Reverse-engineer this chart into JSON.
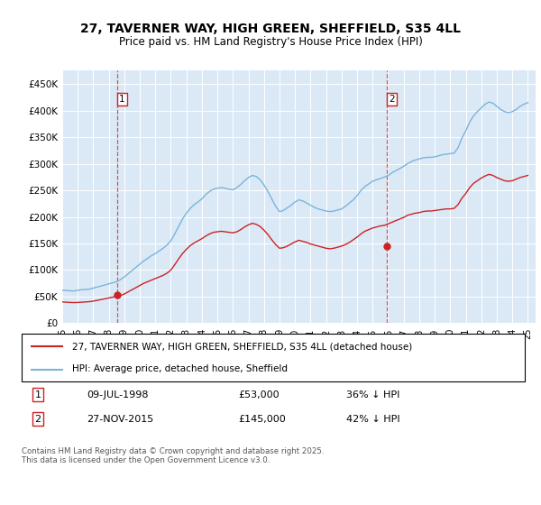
{
  "title": "27, TAVERNER WAY, HIGH GREEN, SHEFFIELD, S35 4LL",
  "subtitle": "Price paid vs. HM Land Registry's House Price Index (HPI)",
  "legend_line1": "27, TAVERNER WAY, HIGH GREEN, SHEFFIELD, S35 4LL (detached house)",
  "legend_line2": "HPI: Average price, detached house, Sheffield",
  "footer": "Contains HM Land Registry data © Crown copyright and database right 2025.\nThis data is licensed under the Open Government Licence v3.0.",
  "purchase1_date": 1998.52,
  "purchase1_label": "1",
  "purchase1_price": 53000,
  "purchase1_text": "09-JUL-1998",
  "purchase1_price_text": "£53,000",
  "purchase1_pct": "36% ↓ HPI",
  "purchase2_date": 2015.9,
  "purchase2_label": "2",
  "purchase2_price": 145000,
  "purchase2_text": "27-NOV-2015",
  "purchase2_price_text": "£145,000",
  "purchase2_pct": "42% ↓ HPI",
  "hpi_color": "#7ab4d8",
  "price_color": "#cc2222",
  "background_color": "#dbe9f7",
  "ylim": [
    0,
    475000
  ],
  "yticks": [
    0,
    50000,
    100000,
    150000,
    200000,
    250000,
    300000,
    350000,
    400000,
    450000
  ],
  "ytick_labels": [
    "£0",
    "£50K",
    "£100K",
    "£150K",
    "£200K",
    "£250K",
    "£300K",
    "£350K",
    "£400K",
    "£450K"
  ],
  "hpi_data": [
    [
      1995.0,
      62000
    ],
    [
      1995.25,
      61500
    ],
    [
      1995.5,
      61000
    ],
    [
      1995.75,
      60500
    ],
    [
      1996.0,
      62000
    ],
    [
      1996.25,
      63000
    ],
    [
      1996.5,
      63500
    ],
    [
      1996.75,
      64000
    ],
    [
      1997.0,
      66000
    ],
    [
      1997.25,
      68000
    ],
    [
      1997.5,
      70000
    ],
    [
      1997.75,
      72000
    ],
    [
      1998.0,
      74000
    ],
    [
      1998.25,
      76000
    ],
    [
      1998.5,
      78000
    ],
    [
      1998.75,
      82000
    ],
    [
      1999.0,
      87000
    ],
    [
      1999.25,
      93000
    ],
    [
      1999.5,
      99000
    ],
    [
      1999.75,
      105000
    ],
    [
      2000.0,
      111000
    ],
    [
      2000.25,
      117000
    ],
    [
      2000.5,
      122000
    ],
    [
      2000.75,
      127000
    ],
    [
      2001.0,
      131000
    ],
    [
      2001.25,
      136000
    ],
    [
      2001.5,
      141000
    ],
    [
      2001.75,
      147000
    ],
    [
      2002.0,
      155000
    ],
    [
      2002.25,
      168000
    ],
    [
      2002.5,
      182000
    ],
    [
      2002.75,
      196000
    ],
    [
      2003.0,
      207000
    ],
    [
      2003.25,
      216000
    ],
    [
      2003.5,
      223000
    ],
    [
      2003.75,
      228000
    ],
    [
      2004.0,
      234000
    ],
    [
      2004.25,
      242000
    ],
    [
      2004.5,
      248000
    ],
    [
      2004.75,
      252000
    ],
    [
      2005.0,
      254000
    ],
    [
      2005.25,
      255000
    ],
    [
      2005.5,
      254000
    ],
    [
      2005.75,
      252000
    ],
    [
      2006.0,
      251000
    ],
    [
      2006.25,
      255000
    ],
    [
      2006.5,
      261000
    ],
    [
      2006.75,
      268000
    ],
    [
      2007.0,
      274000
    ],
    [
      2007.25,
      278000
    ],
    [
      2007.5,
      276000
    ],
    [
      2007.75,
      270000
    ],
    [
      2008.0,
      260000
    ],
    [
      2008.25,
      248000
    ],
    [
      2008.5,
      234000
    ],
    [
      2008.75,
      220000
    ],
    [
      2009.0,
      210000
    ],
    [
      2009.25,
      212000
    ],
    [
      2009.5,
      217000
    ],
    [
      2009.75,
      222000
    ],
    [
      2010.0,
      228000
    ],
    [
      2010.25,
      232000
    ],
    [
      2010.5,
      230000
    ],
    [
      2010.75,
      226000
    ],
    [
      2011.0,
      222000
    ],
    [
      2011.25,
      218000
    ],
    [
      2011.5,
      215000
    ],
    [
      2011.75,
      213000
    ],
    [
      2012.0,
      211000
    ],
    [
      2012.25,
      210000
    ],
    [
      2012.5,
      211000
    ],
    [
      2012.75,
      213000
    ],
    [
      2013.0,
      215000
    ],
    [
      2013.25,
      220000
    ],
    [
      2013.5,
      226000
    ],
    [
      2013.75,
      232000
    ],
    [
      2014.0,
      240000
    ],
    [
      2014.25,
      250000
    ],
    [
      2014.5,
      257000
    ],
    [
      2014.75,
      262000
    ],
    [
      2015.0,
      267000
    ],
    [
      2015.25,
      270000
    ],
    [
      2015.5,
      272000
    ],
    [
      2015.75,
      275000
    ],
    [
      2016.0,
      278000
    ],
    [
      2016.25,
      283000
    ],
    [
      2016.5,
      287000
    ],
    [
      2016.75,
      291000
    ],
    [
      2017.0,
      295000
    ],
    [
      2017.25,
      300000
    ],
    [
      2017.5,
      304000
    ],
    [
      2017.75,
      307000
    ],
    [
      2018.0,
      309000
    ],
    [
      2018.25,
      311000
    ],
    [
      2018.5,
      312000
    ],
    [
      2018.75,
      312000
    ],
    [
      2019.0,
      313000
    ],
    [
      2019.25,
      315000
    ],
    [
      2019.5,
      317000
    ],
    [
      2019.75,
      318000
    ],
    [
      2020.0,
      319000
    ],
    [
      2020.25,
      320000
    ],
    [
      2020.5,
      330000
    ],
    [
      2020.75,
      348000
    ],
    [
      2021.0,
      362000
    ],
    [
      2021.25,
      378000
    ],
    [
      2021.5,
      390000
    ],
    [
      2021.75,
      398000
    ],
    [
      2022.0,
      405000
    ],
    [
      2022.25,
      412000
    ],
    [
      2022.5,
      416000
    ],
    [
      2022.75,
      414000
    ],
    [
      2023.0,
      408000
    ],
    [
      2023.25,
      402000
    ],
    [
      2023.5,
      398000
    ],
    [
      2023.75,
      396000
    ],
    [
      2024.0,
      398000
    ],
    [
      2024.25,
      402000
    ],
    [
      2024.5,
      408000
    ],
    [
      2024.75,
      412000
    ],
    [
      2025.0,
      415000
    ]
  ],
  "price_data": [
    [
      1995.0,
      40000
    ],
    [
      1995.25,
      39500
    ],
    [
      1995.5,
      39000
    ],
    [
      1995.75,
      38800
    ],
    [
      1996.0,
      39000
    ],
    [
      1996.25,
      39500
    ],
    [
      1996.5,
      40000
    ],
    [
      1996.75,
      40500
    ],
    [
      1997.0,
      41500
    ],
    [
      1997.25,
      43000
    ],
    [
      1997.5,
      44500
    ],
    [
      1997.75,
      46000
    ],
    [
      1998.0,
      47500
    ],
    [
      1998.25,
      49000
    ],
    [
      1998.5,
      50500
    ],
    [
      1998.75,
      52000
    ],
    [
      1999.0,
      55000
    ],
    [
      1999.25,
      59000
    ],
    [
      1999.5,
      63000
    ],
    [
      1999.75,
      67000
    ],
    [
      2000.0,
      71000
    ],
    [
      2000.25,
      75000
    ],
    [
      2000.5,
      78000
    ],
    [
      2000.75,
      81000
    ],
    [
      2001.0,
      84000
    ],
    [
      2001.25,
      87000
    ],
    [
      2001.5,
      90000
    ],
    [
      2001.75,
      94000
    ],
    [
      2002.0,
      100000
    ],
    [
      2002.25,
      110000
    ],
    [
      2002.5,
      121000
    ],
    [
      2002.75,
      131000
    ],
    [
      2003.0,
      139000
    ],
    [
      2003.25,
      146000
    ],
    [
      2003.5,
      151000
    ],
    [
      2003.75,
      155000
    ],
    [
      2004.0,
      159000
    ],
    [
      2004.25,
      164000
    ],
    [
      2004.5,
      168000
    ],
    [
      2004.75,
      171000
    ],
    [
      2005.0,
      172000
    ],
    [
      2005.25,
      173000
    ],
    [
      2005.5,
      172000
    ],
    [
      2005.75,
      171000
    ],
    [
      2006.0,
      170000
    ],
    [
      2006.25,
      172000
    ],
    [
      2006.5,
      176000
    ],
    [
      2006.75,
      181000
    ],
    [
      2007.0,
      185000
    ],
    [
      2007.25,
      188000
    ],
    [
      2007.5,
      186000
    ],
    [
      2007.75,
      182000
    ],
    [
      2008.0,
      175000
    ],
    [
      2008.25,
      167000
    ],
    [
      2008.5,
      157000
    ],
    [
      2008.75,
      148000
    ],
    [
      2009.0,
      141000
    ],
    [
      2009.25,
      142000
    ],
    [
      2009.5,
      145000
    ],
    [
      2009.75,
      149000
    ],
    [
      2010.0,
      153000
    ],
    [
      2010.25,
      156000
    ],
    [
      2010.5,
      154000
    ],
    [
      2010.75,
      152000
    ],
    [
      2011.0,
      149000
    ],
    [
      2011.25,
      147000
    ],
    [
      2011.5,
      145000
    ],
    [
      2011.75,
      143000
    ],
    [
      2012.0,
      141000
    ],
    [
      2012.25,
      140000
    ],
    [
      2012.5,
      141000
    ],
    [
      2012.75,
      143000
    ],
    [
      2013.0,
      145000
    ],
    [
      2013.25,
      148000
    ],
    [
      2013.5,
      152000
    ],
    [
      2013.75,
      157000
    ],
    [
      2014.0,
      162000
    ],
    [
      2014.25,
      168000
    ],
    [
      2014.5,
      173000
    ],
    [
      2014.75,
      176000
    ],
    [
      2015.0,
      179000
    ],
    [
      2015.25,
      181000
    ],
    [
      2015.5,
      183000
    ],
    [
      2015.75,
      184000
    ],
    [
      2016.0,
      187000
    ],
    [
      2016.25,
      190000
    ],
    [
      2016.5,
      193000
    ],
    [
      2016.75,
      196000
    ],
    [
      2017.0,
      199000
    ],
    [
      2017.25,
      203000
    ],
    [
      2017.5,
      205000
    ],
    [
      2017.75,
      207000
    ],
    [
      2018.0,
      208000
    ],
    [
      2018.25,
      210000
    ],
    [
      2018.5,
      211000
    ],
    [
      2018.75,
      211000
    ],
    [
      2019.0,
      212000
    ],
    [
      2019.25,
      213000
    ],
    [
      2019.5,
      214000
    ],
    [
      2019.75,
      215000
    ],
    [
      2020.0,
      215000
    ],
    [
      2020.25,
      216000
    ],
    [
      2020.5,
      223000
    ],
    [
      2020.75,
      235000
    ],
    [
      2021.0,
      244000
    ],
    [
      2021.25,
      255000
    ],
    [
      2021.5,
      263000
    ],
    [
      2021.75,
      268000
    ],
    [
      2022.0,
      273000
    ],
    [
      2022.25,
      277000
    ],
    [
      2022.5,
      280000
    ],
    [
      2022.75,
      278000
    ],
    [
      2023.0,
      274000
    ],
    [
      2023.25,
      271000
    ],
    [
      2023.5,
      268000
    ],
    [
      2023.75,
      267000
    ],
    [
      2024.0,
      268000
    ],
    [
      2024.25,
      271000
    ],
    [
      2024.5,
      274000
    ],
    [
      2024.75,
      276000
    ],
    [
      2025.0,
      278000
    ]
  ]
}
